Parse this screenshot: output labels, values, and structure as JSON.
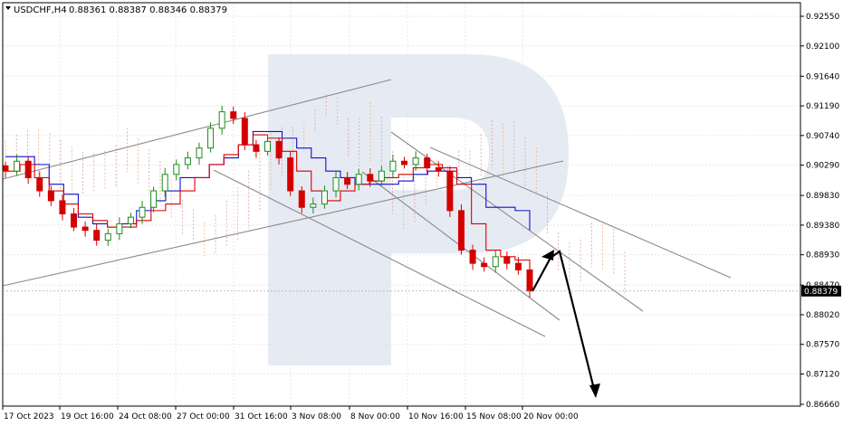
{
  "header": {
    "symbol": "USDCHF,H4",
    "quotes": "0.88361 0.88387 0.88346 0.88379"
  },
  "colors": {
    "background": "#ffffff",
    "grid": "#e8e8e8",
    "bull_candle": "#1d8a1d",
    "bear_candle": "#d40000",
    "kijun": "#1010cc",
    "tenkan": "#dd0000",
    "cloud_upper": "#d8a0a0",
    "cloud_lower": "#f0b080",
    "trendline": "#8a8a8a",
    "arrow": "#000000",
    "price_box": "#000000",
    "watermark": "#dde4ef"
  },
  "chart_data": {
    "type": "candlestick",
    "title": "USDCHF,H4",
    "y_ticks": [
      "0.92550",
      "0.92100",
      "0.91640",
      "0.91190",
      "0.90740",
      "0.90290",
      "0.89830",
      "0.89380",
      "0.88930",
      "0.88470",
      "0.88020",
      "0.87570",
      "0.87120",
      "0.86660"
    ],
    "x_ticks": [
      "17 Oct 2023",
      "19 Oct 16:00",
      "24 Oct 08:00",
      "27 Oct 00:00",
      "31 Oct 16:00",
      "3 Nov 08:00",
      "8 Nov 00:00",
      "10 Nov 16:00",
      "15 Nov 08:00",
      "20 Nov 00:00"
    ],
    "ylim": [
      0.866,
      0.9265
    ],
    "current_price": "0.88379",
    "grid": true,
    "close_path": [
      0.902,
      0.9035,
      0.901,
      0.899,
      0.8975,
      0.8955,
      0.8935,
      0.893,
      0.8915,
      0.8925,
      0.894,
      0.895,
      0.8965,
      0.899,
      0.9015,
      0.903,
      0.904,
      0.9055,
      0.9085,
      0.911,
      0.91,
      0.906,
      0.905,
      0.9065,
      0.904,
      0.899,
      0.8965,
      0.897,
      0.899,
      0.901,
      0.9,
      0.9015,
      0.9005,
      0.902,
      0.9035,
      0.903,
      0.904,
      0.9025,
      0.902,
      0.896,
      0.89,
      0.888,
      0.8875,
      0.889,
      0.888,
      0.887,
      0.8838
    ],
    "kijun": [
      0.9042,
      0.9042,
      0.903,
      0.9,
      0.8985,
      0.895,
      0.894,
      0.8935,
      0.894,
      0.896,
      0.8975,
      0.899,
      0.901,
      0.901,
      0.903,
      0.904,
      0.906,
      0.908,
      0.908,
      0.907,
      0.9055,
      0.904,
      0.902,
      0.901,
      0.9,
      0.9,
      0.9,
      0.9005,
      0.9015,
      0.902,
      0.902,
      0.901,
      0.9,
      0.8965,
      0.8965,
      0.896,
      0.893
    ],
    "tenkan": [
      0.902,
      0.903,
      0.901,
      0.899,
      0.897,
      0.8955,
      0.8945,
      0.8935,
      0.8935,
      0.8945,
      0.896,
      0.897,
      0.899,
      0.901,
      0.903,
      0.9045,
      0.906,
      0.9075,
      0.907,
      0.905,
      0.902,
      0.899,
      0.8975,
      0.899,
      0.9,
      0.9005,
      0.901,
      0.9015,
      0.9025,
      0.903,
      0.9025,
      0.9,
      0.894,
      0.89,
      0.889,
      0.8885,
      0.887
    ]
  }
}
